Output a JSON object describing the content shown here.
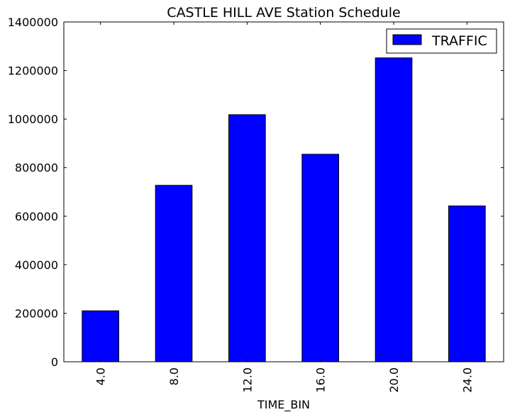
{
  "chart_data": {
    "type": "bar",
    "title": "CASTLE HILL AVE Station Schedule",
    "xlabel": "TIME_BIN",
    "ylabel": "",
    "categories": [
      "4.0",
      "8.0",
      "12.0",
      "16.0",
      "20.0",
      "24.0"
    ],
    "series": [
      {
        "name": "TRAFFIC",
        "color": "#0000ff",
        "values": [
          210000,
          727000,
          1018000,
          855000,
          1252000,
          642000
        ]
      }
    ],
    "ylim": [
      0,
      1400000
    ],
    "yticks": [
      "0",
      "200000",
      "400000",
      "600000",
      "800000",
      "1000000",
      "1200000",
      "1400000"
    ],
    "grid": false,
    "legend_position": "top-right"
  }
}
